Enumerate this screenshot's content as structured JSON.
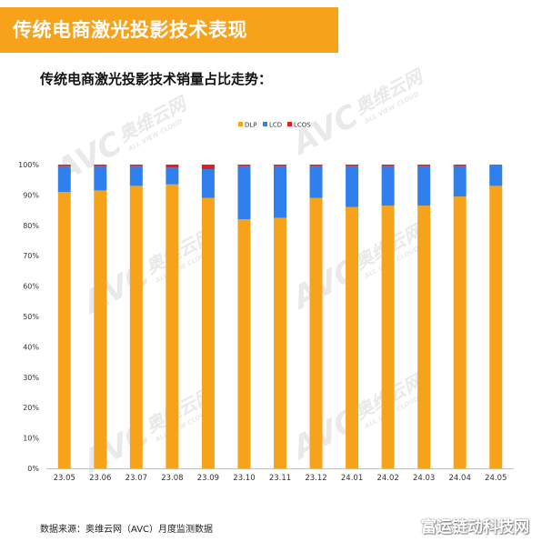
{
  "header": {
    "title": "传统电商激光投影技术表现"
  },
  "chart_title": "传统电商激光投影技术销量占比走势：",
  "source": "数据来源：奥维云网（AVC）月度监测数据",
  "site_mark": "富运链动科技网",
  "watermark": {
    "brand": "AVC",
    "cn": "奥维云网",
    "en": "ALL VIEW CLOUD"
  },
  "colors": {
    "DLP": "#f7a21b",
    "LCD": "#2f80ed",
    "LCOS": "#e02020"
  },
  "chart_data": {
    "type": "bar",
    "stacked": true,
    "categories": [
      "23.05",
      "23.06",
      "23.07",
      "23.08",
      "23.09",
      "23.10",
      "23.11",
      "23.12",
      "24.01",
      "24.02",
      "24.03",
      "24.04",
      "24.05"
    ],
    "series": [
      {
        "name": "DLP",
        "values": [
          91.0,
          91.5,
          93.0,
          93.5,
          89.0,
          82.0,
          82.5,
          89.0,
          86.0,
          86.5,
          86.5,
          89.5,
          93.0
        ]
      },
      {
        "name": "LCD",
        "values": [
          8.5,
          8.0,
          6.5,
          5.5,
          9.5,
          17.5,
          17.0,
          10.5,
          13.5,
          13.0,
          13.0,
          10.0,
          7.0
        ]
      },
      {
        "name": "LCOS",
        "values": [
          0.5,
          0.5,
          0.5,
          1.0,
          1.5,
          0.5,
          0.5,
          0.5,
          0.5,
          0.5,
          0.5,
          0.5,
          0.0
        ]
      }
    ],
    "yticks": [
      "0%",
      "10%",
      "20%",
      "30%",
      "40%",
      "50%",
      "60%",
      "70%",
      "80%",
      "90%",
      "100%"
    ],
    "ylim": [
      0,
      100
    ],
    "legend_position": "top-center"
  }
}
